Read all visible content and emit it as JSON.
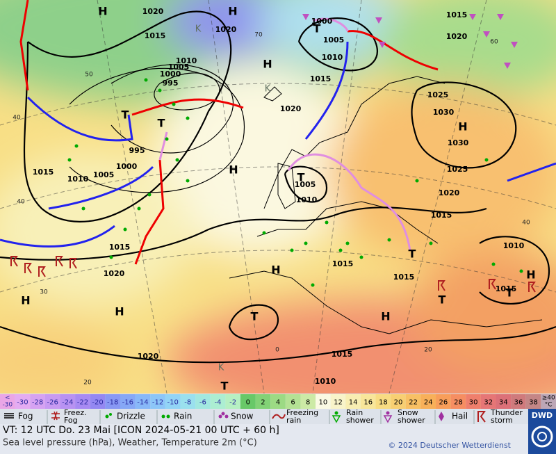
{
  "map": {
    "pressure_labels": [
      1020,
      1020,
      1015,
      1010,
      1005,
      1000,
      995,
      1000,
      1005,
      1010,
      1015,
      1015,
      1020,
      1025,
      1030,
      1030,
      1025,
      1020,
      1015,
      1020,
      1005,
      1010,
      995,
      1000,
      1005,
      1010,
      1015,
      1015,
      1020,
      1015,
      1015,
      1010,
      1015,
      1020,
      1015,
      1010
    ],
    "centers": [
      "H",
      "H",
      "H",
      "H",
      "H",
      "H",
      "H",
      "H",
      "H",
      "H",
      "T",
      "T",
      "T",
      "T",
      "T",
      "T",
      "T",
      "T",
      "T"
    ],
    "air_mass": [
      "K",
      "K",
      "K"
    ],
    "temperature_labels": [
      70,
      60,
      50,
      40,
      40,
      30,
      20,
      0,
      20,
      40
    ]
  },
  "scale": {
    "low": {
      "lines": [
        "<",
        "-30"
      ],
      "color": "#eaa6e6"
    },
    "values": [
      -30,
      -28,
      -26,
      -24,
      -22,
      -20,
      -18,
      -16,
      -14,
      -12,
      -10,
      -8,
      -6,
      -4,
      -2,
      0,
      2,
      4,
      6,
      8,
      10,
      12,
      14,
      16,
      18,
      20,
      22,
      24,
      26,
      28,
      30,
      32,
      34,
      36,
      38
    ],
    "colors": [
      "#e4acf2",
      "#d6a2f2",
      "#c89af2",
      "#b892f2",
      "#a88af2",
      "#9488f2",
      "#8898f4",
      "#86a8f6",
      "#88b8f8",
      "#8cc6f8",
      "#92d4f6",
      "#9ae0ee",
      "#a2e8e0",
      "#aceed2",
      "#b6f0c2",
      "#68c868",
      "#82d276",
      "#9cda84",
      "#b4e294",
      "#cceaa6",
      "#fafae4",
      "#f8f4ca",
      "#f8eeb2",
      "#f8e69a",
      "#f8dc82",
      "#f8cf72",
      "#f8c064",
      "#f8b05a",
      "#f89e5a",
      "#f68e62",
      "#ef7f6c",
      "#e67676",
      "#dc7078",
      "#cf7a7c",
      "#c48686"
    ],
    "high": {
      "lines": [
        "≥40",
        "°C"
      ],
      "color": "#bca6b6"
    }
  },
  "legend": [
    "Fog",
    "Freez. Fog",
    "Drizzle",
    "Rain",
    "Snow",
    "Freezing rain",
    "Rain shower",
    "Snow shower",
    "Hail",
    "Thunder storm"
  ],
  "footer": {
    "valid_time": "VT: 12 UTC Do.  23 Mai [ICON 2024-05-21  00 UTC + 60 h]",
    "subtitle": "Sea level pressure (hPa), Weather, Temperature 2m (°C)",
    "copyright": "© 2024 Deutscher Wetterdienst",
    "logo": "DWD"
  }
}
